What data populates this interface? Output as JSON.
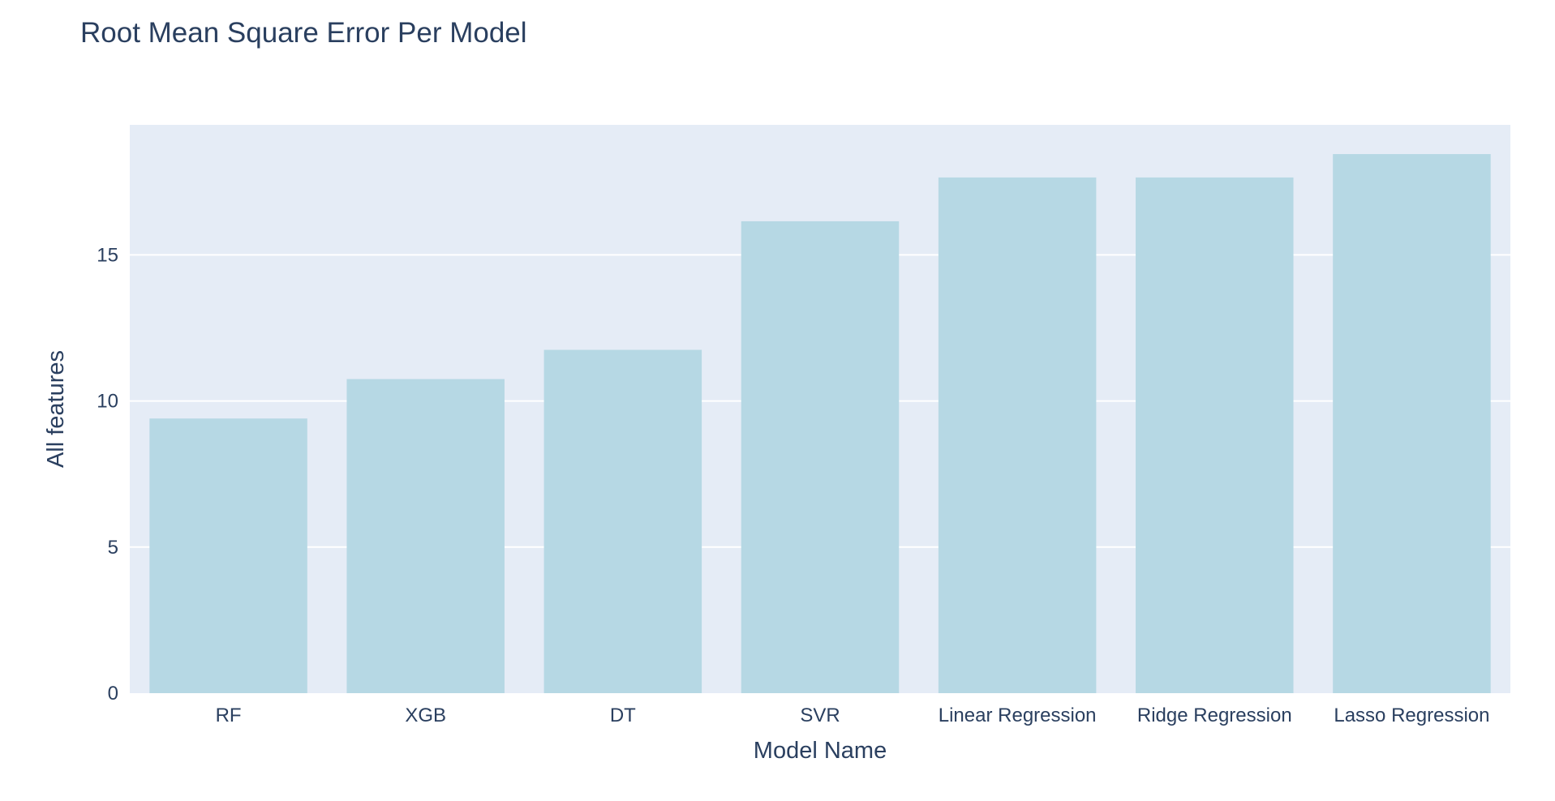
{
  "chart_data": {
    "type": "bar",
    "title": "Root Mean Square Error Per Model",
    "xlabel": "Model Name",
    "ylabel": "All features",
    "categories": [
      "RF",
      "XGB",
      "DT",
      "SVR",
      "Linear Regression",
      "Ridge Regression",
      "Lasso Regression"
    ],
    "values": [
      9.4,
      10.75,
      11.75,
      16.15,
      17.65,
      17.65,
      18.45
    ],
    "ylim": [
      0,
      19.45
    ],
    "yticks": [
      0,
      5,
      10,
      15
    ],
    "grid": true,
    "legend": "none",
    "colors": {
      "bar": "#b6d8e4",
      "plot_bg": "#e5ecf6",
      "grid": "#ffffff",
      "text": "#2a3f5f"
    }
  }
}
